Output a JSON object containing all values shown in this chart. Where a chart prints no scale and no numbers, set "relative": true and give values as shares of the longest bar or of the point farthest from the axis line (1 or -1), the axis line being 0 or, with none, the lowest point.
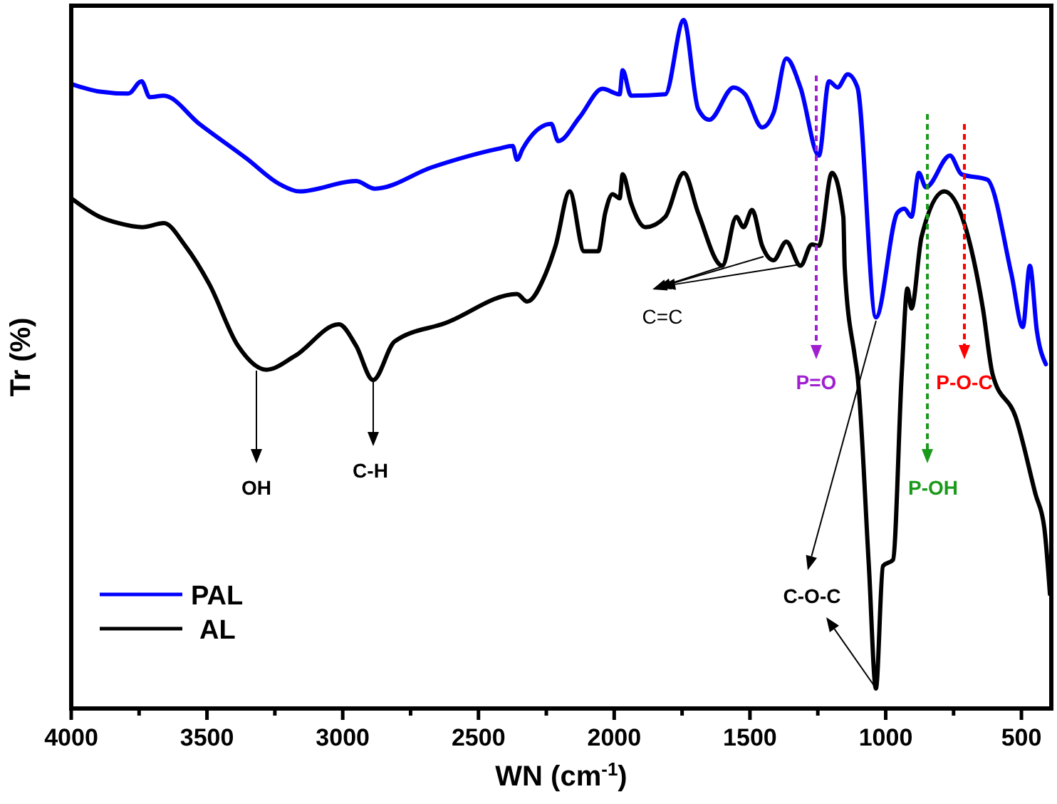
{
  "chart_data": {
    "type": "line",
    "xlabel": "WN (cm$^{-1}$)",
    "ylabel": "Tr (%)",
    "relative": true,
    "xlim": [
      4000,
      390
    ],
    "xticks": [
      4000,
      {
        "value": 3750,
        "label": null
      },
      3500,
      {
        "value": 3250,
        "label": null
      },
      3000,
      {
        "value": 2750,
        "label": null
      },
      2500,
      {
        "value": 2250,
        "label": null
      },
      2000,
      {
        "value": 1750,
        "label": null
      },
      1500,
      {
        "value": 1250,
        "label": null
      },
      1000,
      {
        "value": 750,
        "label": null
      },
      500
    ],
    "tick_labels": "x",
    "legend": "bottom left",
    "grid": false,
    "marker": "none",
    "line_style": "solid",
    "series": [
      {
        "name": "PAL",
        "color": "#0000ff",
        "x": [
          4000,
          3895,
          3790,
          3741,
          3711,
          3659,
          3528,
          3355,
          3230,
          3160,
          2951,
          2882,
          2672,
          2426,
          2374,
          2358,
          2337,
          2232,
          2206,
          2127,
          2043,
          1980,
          1969,
          1938,
          1812,
          1744,
          1691,
          1650,
          1560,
          1518,
          1455,
          1413,
          1366,
          1314,
          1246,
          1209,
          1177,
          1140,
          1104,
          1036,
          957,
          931,
          905,
          878,
          852,
          763,
          721,
          626,
          537,
          495,
          469,
          443,
          410
        ],
        "values": [
          0.907,
          0.896,
          0.893,
          0.911,
          0.888,
          0.89,
          0.849,
          0.799,
          0.761,
          0.751,
          0.766,
          0.755,
          0.786,
          0.813,
          0.817,
          0.797,
          0.813,
          0.849,
          0.824,
          0.859,
          0.9,
          0.892,
          0.927,
          0.89,
          0.892,
          1.0,
          0.871,
          0.855,
          0.902,
          0.892,
          0.844,
          0.865,
          0.944,
          0.902,
          0.803,
          0.911,
          0.902,
          0.921,
          0.902,
          0.568,
          0.72,
          0.726,
          0.714,
          0.778,
          0.757,
          0.803,
          0.776,
          0.768,
          0.631,
          0.554,
          0.643,
          0.548,
          0.5
        ]
      },
      {
        "name": "AL",
        "color": "#000000",
        "x": [
          4000,
          3895,
          3827,
          3738,
          3659,
          3580,
          3491,
          3386,
          3281,
          3176,
          3014,
          2951,
          2888,
          2809,
          2620,
          2358,
          2321,
          2253,
          2216,
          2164,
          2111,
          2059,
          2033,
          2006,
          1980,
          1969,
          1938,
          1885,
          1812,
          1744,
          1691,
          1602,
          1550,
          1524,
          1492,
          1455,
          1413,
          1366,
          1314,
          1272,
          1246,
          1198,
          1156,
          1151,
          1114,
          1104,
          1062,
          1036,
          1010,
          973,
          941,
          920,
          905,
          868,
          784,
          711,
          642,
          606,
          521,
          448,
          416,
          395
        ],
        "values": [
          0.741,
          0.714,
          0.705,
          0.699,
          0.705,
          0.672,
          0.616,
          0.527,
          0.492,
          0.512,
          0.558,
          0.527,
          0.477,
          0.533,
          0.56,
          0.602,
          0.591,
          0.631,
          0.672,
          0.751,
          0.664,
          0.664,
          0.72,
          0.747,
          0.741,
          0.776,
          0.734,
          0.699,
          0.714,
          0.778,
          0.72,
          0.643,
          0.714,
          0.699,
          0.724,
          0.672,
          0.651,
          0.678,
          0.643,
          0.674,
          0.672,
          0.778,
          0.714,
          0.641,
          0.512,
          0.485,
          0.207,
          0.029,
          0.207,
          0.216,
          0.485,
          0.61,
          0.581,
          0.685,
          0.751,
          0.705,
          0.581,
          0.485,
          0.423,
          0.311,
          0.263,
          0.166
        ]
      }
    ],
    "annotations": [
      "OH",
      "C-H",
      "C=C",
      "P=O",
      "P-OH",
      "P-O-C",
      "C-O-C"
    ]
  }
}
